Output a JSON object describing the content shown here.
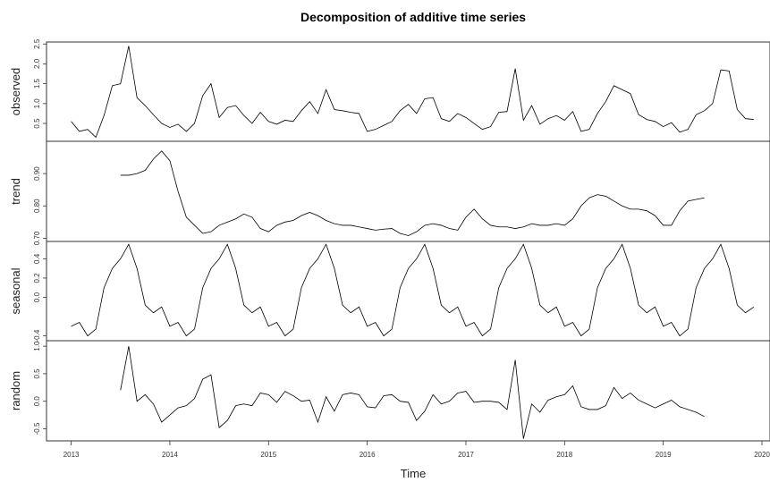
{
  "chart_data": {
    "type": "line",
    "title": "Decomposition of additive time series",
    "xlabel": "Time",
    "xlim": [
      2012.75,
      2020.0
    ],
    "x_ticks": [
      {
        "value": 2013,
        "label": "2013"
      },
      {
        "value": 2014,
        "label": "2014"
      },
      {
        "value": 2015,
        "label": "2015"
      },
      {
        "value": 2016,
        "label": "2016"
      },
      {
        "value": 2017,
        "label": "2017"
      },
      {
        "value": 2018,
        "label": "2018"
      },
      {
        "value": 2019,
        "label": "2019"
      },
      {
        "value": 2020,
        "label": "2020"
      }
    ],
    "panels": [
      {
        "name": "observed",
        "ylabel": "observed",
        "ylim": [
          0.05,
          2.55
        ],
        "y_ticks": [
          {
            "value": 0.5,
            "label": "0.5"
          },
          {
            "value": 1.0,
            "label": "1.0"
          },
          {
            "value": 1.5,
            "label": "1.5"
          },
          {
            "value": 2.0,
            "label": "2.0"
          },
          {
            "value": 2.5,
            "label": "2.5"
          }
        ],
        "x": [
          2013.0,
          2013.083,
          2013.167,
          2013.25,
          2013.333,
          2013.417,
          2013.5,
          2013.583,
          2013.667,
          2013.75,
          2013.833,
          2013.917,
          2014.0,
          2014.083,
          2014.167,
          2014.25,
          2014.333,
          2014.417,
          2014.5,
          2014.583,
          2014.667,
          2014.75,
          2014.833,
          2014.917,
          2015.0,
          2015.083,
          2015.167,
          2015.25,
          2015.333,
          2015.417,
          2015.5,
          2015.583,
          2015.667,
          2015.75,
          2015.833,
          2015.917,
          2016.0,
          2016.083,
          2016.167,
          2016.25,
          2016.333,
          2016.417,
          2016.5,
          2016.583,
          2016.667,
          2016.75,
          2016.833,
          2016.917,
          2017.0,
          2017.083,
          2017.167,
          2017.25,
          2017.333,
          2017.417,
          2017.5,
          2017.583,
          2017.667,
          2017.75,
          2017.833,
          2017.917,
          2018.0,
          2018.083,
          2018.167,
          2018.25,
          2018.333,
          2018.417,
          2018.5,
          2018.583,
          2018.667,
          2018.75,
          2018.833,
          2018.917,
          2019.0,
          2019.083,
          2019.167,
          2019.25,
          2019.333,
          2019.417,
          2019.5,
          2019.583,
          2019.667,
          2019.75,
          2019.833,
          2019.917
        ],
        "y": [
          0.55,
          0.3,
          0.35,
          0.15,
          0.7,
          1.45,
          1.5,
          2.45,
          1.15,
          0.95,
          0.72,
          0.5,
          0.4,
          0.48,
          0.3,
          0.5,
          1.2,
          1.5,
          0.65,
          0.9,
          0.95,
          0.7,
          0.5,
          0.78,
          0.55,
          0.48,
          0.58,
          0.55,
          0.82,
          1.05,
          0.75,
          1.35,
          0.85,
          0.82,
          0.78,
          0.75,
          0.3,
          0.35,
          0.45,
          0.55,
          0.82,
          0.98,
          0.75,
          1.12,
          1.15,
          0.62,
          0.55,
          0.75,
          0.65,
          0.5,
          0.35,
          0.42,
          0.78,
          0.8,
          1.88,
          0.58,
          0.95,
          0.48,
          0.62,
          0.7,
          0.58,
          0.8,
          0.3,
          0.35,
          0.75,
          1.05,
          1.45,
          1.35,
          1.25,
          0.72,
          0.6,
          0.55,
          0.42,
          0.52,
          0.28,
          0.35,
          0.72,
          0.82,
          1.0,
          1.85,
          1.82,
          0.85,
          0.62,
          0.6
        ]
      },
      {
        "name": "trend",
        "ylabel": "trend",
        "ylim": [
          0.69,
          1.0
        ],
        "y_ticks": [
          {
            "value": 0.7,
            "label": "0.70"
          },
          {
            "value": 0.8,
            "label": "0.80"
          },
          {
            "value": 0.9,
            "label": "0.90"
          }
        ],
        "x": [
          2013.5,
          2013.583,
          2013.667,
          2013.75,
          2013.833,
          2013.917,
          2014.0,
          2014.083,
          2014.167,
          2014.25,
          2014.333,
          2014.417,
          2014.5,
          2014.583,
          2014.667,
          2014.75,
          2014.833,
          2014.917,
          2015.0,
          2015.083,
          2015.167,
          2015.25,
          2015.333,
          2015.417,
          2015.5,
          2015.583,
          2015.667,
          2015.75,
          2015.833,
          2015.917,
          2016.0,
          2016.083,
          2016.167,
          2016.25,
          2016.333,
          2016.417,
          2016.5,
          2016.583,
          2016.667,
          2016.75,
          2016.833,
          2016.917,
          2017.0,
          2017.083,
          2017.167,
          2017.25,
          2017.333,
          2017.417,
          2017.5,
          2017.583,
          2017.667,
          2017.75,
          2017.833,
          2017.917,
          2018.0,
          2018.083,
          2018.167,
          2018.25,
          2018.333,
          2018.417,
          2018.5,
          2018.583,
          2018.667,
          2018.75,
          2018.833,
          2018.917,
          2019.0,
          2019.083,
          2019.167,
          2019.25,
          2019.333,
          2019.417
        ],
        "y": [
          0.895,
          0.895,
          0.9,
          0.91,
          0.945,
          0.97,
          0.94,
          0.845,
          0.765,
          0.74,
          0.715,
          0.72,
          0.74,
          0.75,
          0.76,
          0.775,
          0.765,
          0.73,
          0.72,
          0.74,
          0.75,
          0.755,
          0.77,
          0.78,
          0.77,
          0.755,
          0.745,
          0.74,
          0.74,
          0.735,
          0.73,
          0.725,
          0.728,
          0.73,
          0.715,
          0.708,
          0.72,
          0.74,
          0.745,
          0.74,
          0.73,
          0.725,
          0.765,
          0.79,
          0.76,
          0.74,
          0.735,
          0.735,
          0.73,
          0.735,
          0.745,
          0.74,
          0.74,
          0.745,
          0.74,
          0.76,
          0.8,
          0.825,
          0.835,
          0.83,
          0.815,
          0.8,
          0.79,
          0.79,
          0.785,
          0.77,
          0.74,
          0.74,
          0.785,
          0.815,
          0.82,
          0.825
        ]
      },
      {
        "name": "seasonal",
        "ylabel": "seasonal",
        "ylim": [
          -0.45,
          0.58
        ],
        "y_ticks": [
          {
            "value": -0.4,
            "label": "-0.4"
          },
          {
            "value": 0.0,
            "label": "0.0"
          },
          {
            "value": 0.2,
            "label": "0.2"
          },
          {
            "value": 0.4,
            "label": "0.4"
          }
        ],
        "x": [
          2013.0,
          2013.083,
          2013.167,
          2013.25,
          2013.333,
          2013.417,
          2013.5,
          2013.583,
          2013.667,
          2013.75,
          2013.833,
          2013.917,
          2014.0,
          2014.083,
          2014.167,
          2014.25,
          2014.333,
          2014.417,
          2014.5,
          2014.583,
          2014.667,
          2014.75,
          2014.833,
          2014.917,
          2015.0,
          2015.083,
          2015.167,
          2015.25,
          2015.333,
          2015.417,
          2015.5,
          2015.583,
          2015.667,
          2015.75,
          2015.833,
          2015.917,
          2016.0,
          2016.083,
          2016.167,
          2016.25,
          2016.333,
          2016.417,
          2016.5,
          2016.583,
          2016.667,
          2016.75,
          2016.833,
          2016.917,
          2017.0,
          2017.083,
          2017.167,
          2017.25,
          2017.333,
          2017.417,
          2017.5,
          2017.583,
          2017.667,
          2017.75,
          2017.833,
          2017.917,
          2018.0,
          2018.083,
          2018.167,
          2018.25,
          2018.333,
          2018.417,
          2018.5,
          2018.583,
          2018.667,
          2018.75,
          2018.833,
          2018.917,
          2019.0,
          2019.083,
          2019.167,
          2019.25,
          2019.333,
          2019.417,
          2019.5,
          2019.583,
          2019.667,
          2019.75,
          2019.833,
          2019.917
        ],
        "y": [
          -0.3,
          -0.26,
          -0.4,
          -0.33,
          0.1,
          0.3,
          0.4,
          0.55,
          0.3,
          -0.08,
          -0.16,
          -0.1,
          -0.3,
          -0.26,
          -0.4,
          -0.33,
          0.1,
          0.3,
          0.4,
          0.55,
          0.3,
          -0.08,
          -0.16,
          -0.1,
          -0.3,
          -0.26,
          -0.4,
          -0.33,
          0.1,
          0.3,
          0.4,
          0.55,
          0.3,
          -0.08,
          -0.16,
          -0.1,
          -0.3,
          -0.26,
          -0.4,
          -0.33,
          0.1,
          0.3,
          0.4,
          0.55,
          0.3,
          -0.08,
          -0.16,
          -0.1,
          -0.3,
          -0.26,
          -0.4,
          -0.33,
          0.1,
          0.3,
          0.4,
          0.55,
          0.3,
          -0.08,
          -0.16,
          -0.1,
          -0.3,
          -0.26,
          -0.4,
          -0.33,
          0.1,
          0.3,
          0.4,
          0.55,
          0.3,
          -0.08,
          -0.16,
          -0.1,
          -0.3,
          -0.26,
          -0.4,
          -0.33,
          0.1,
          0.3,
          0.4,
          0.55,
          0.3,
          -0.08,
          -0.16,
          -0.1
        ]
      },
      {
        "name": "random",
        "ylabel": "random",
        "ylim": [
          -0.72,
          1.1
        ],
        "y_ticks": [
          {
            "value": -0.5,
            "label": "-0.5"
          },
          {
            "value": 0.0,
            "label": "0.0"
          },
          {
            "value": 0.5,
            "label": "0.5"
          },
          {
            "value": 1.0,
            "label": "1.0"
          }
        ],
        "x": [
          2013.5,
          2013.583,
          2013.667,
          2013.75,
          2013.833,
          2013.917,
          2014.0,
          2014.083,
          2014.167,
          2014.25,
          2014.333,
          2014.417,
          2014.5,
          2014.583,
          2014.667,
          2014.75,
          2014.833,
          2014.917,
          2015.0,
          2015.083,
          2015.167,
          2015.25,
          2015.333,
          2015.417,
          2015.5,
          2015.583,
          2015.667,
          2015.75,
          2015.833,
          2015.917,
          2016.0,
          2016.083,
          2016.167,
          2016.25,
          2016.333,
          2016.417,
          2016.5,
          2016.583,
          2016.667,
          2016.75,
          2016.833,
          2016.917,
          2017.0,
          2017.083,
          2017.167,
          2017.25,
          2017.333,
          2017.417,
          2017.5,
          2017.583,
          2017.667,
          2017.75,
          2017.833,
          2017.917,
          2018.0,
          2018.083,
          2018.167,
          2018.25,
          2018.333,
          2018.417,
          2018.5,
          2018.583,
          2018.667,
          2018.75,
          2018.833,
          2018.917,
          2019.0,
          2019.083,
          2019.167,
          2019.25,
          2019.333,
          2019.417
        ],
        "y": [
          0.2,
          1.0,
          0.0,
          0.12,
          -0.05,
          -0.38,
          -0.25,
          -0.12,
          -0.08,
          0.05,
          0.4,
          0.48,
          -0.48,
          -0.35,
          -0.08,
          -0.05,
          -0.08,
          0.15,
          0.12,
          -0.02,
          0.18,
          0.1,
          0.0,
          0.02,
          -0.38,
          0.08,
          -0.18,
          0.12,
          0.15,
          0.12,
          -0.1,
          -0.12,
          0.1,
          0.12,
          0.0,
          -0.02,
          -0.35,
          -0.18,
          0.12,
          -0.05,
          0.0,
          0.15,
          0.18,
          -0.02,
          0.0,
          0.0,
          -0.02,
          -0.15,
          0.75,
          -0.68,
          -0.05,
          -0.2,
          0.02,
          0.08,
          0.12,
          0.28,
          -0.1,
          -0.15,
          -0.15,
          -0.08,
          0.25,
          0.05,
          0.15,
          0.02,
          -0.05,
          -0.12,
          -0.05,
          0.02,
          -0.1,
          -0.15,
          -0.2,
          -0.28
        ]
      }
    ]
  }
}
